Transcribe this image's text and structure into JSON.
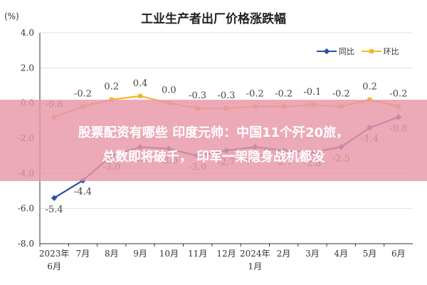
{
  "header": {
    "unit": "(%)",
    "title": "工业生产者出厂价格涨跌幅"
  },
  "banner": {
    "line1": "股票配资有哪些 印度元帅：中国11个歼20旅，",
    "line2": "总数即将破千，  印军一架隐身战机都没"
  },
  "legend": {
    "yoy": "同比",
    "mom": "环比"
  },
  "colors": {
    "yoy": "#2E4FA3",
    "mom": "#F5B52E",
    "grid": "#dddddd",
    "axis": "#333333",
    "banner": "#E896A8"
  },
  "chart_data": {
    "type": "line",
    "title": "工业生产者出厂价格涨跌幅",
    "ylabel": "(%)",
    "xlabel": "",
    "ylim": [
      -8.0,
      4.0
    ],
    "yticks": [
      "4.0",
      "2.0",
      "0.0",
      "-2.0",
      "-4.0",
      "-6.0",
      "-8.0"
    ],
    "categories": [
      [
        "2023年",
        "6月"
      ],
      [
        "7月"
      ],
      [
        "8月"
      ],
      [
        "9月"
      ],
      [
        "10月"
      ],
      [
        "11月"
      ],
      [
        "12月"
      ],
      [
        "2024年",
        "1月"
      ],
      [
        "2月"
      ],
      [
        "3月"
      ],
      [
        "4月"
      ],
      [
        "5月"
      ],
      [
        "6月"
      ]
    ],
    "series": [
      {
        "name": "同比",
        "key": "yoy",
        "values": [
          -5.4,
          -4.4,
          -3.0,
          -2.5,
          -2.6,
          -3.0,
          -2.7,
          -2.5,
          -2.7,
          -2.8,
          -2.5,
          -1.4,
          -0.8
        ],
        "labels": [
          "-5.4",
          "-4.4",
          "-3.0",
          "-2.5",
          "-2.6",
          "-3.0",
          "-2.7",
          "-2.5",
          "-2.7",
          "-2.8",
          "-2.5",
          "-1.4",
          "-0.8"
        ]
      },
      {
        "name": "环比",
        "key": "mom",
        "values": [
          -0.8,
          -0.2,
          0.2,
          0.4,
          0.0,
          -0.3,
          -0.3,
          -0.2,
          -0.2,
          -0.1,
          -0.2,
          0.2,
          -0.2
        ],
        "labels": [
          "-0.8",
          "-0.2",
          "0.2",
          "0.4",
          "0.0",
          "-0.3",
          "-0.3",
          "-0.2",
          "-0.2",
          "-0.1",
          "-0.2",
          "0.2",
          "-0.2"
        ]
      }
    ]
  }
}
